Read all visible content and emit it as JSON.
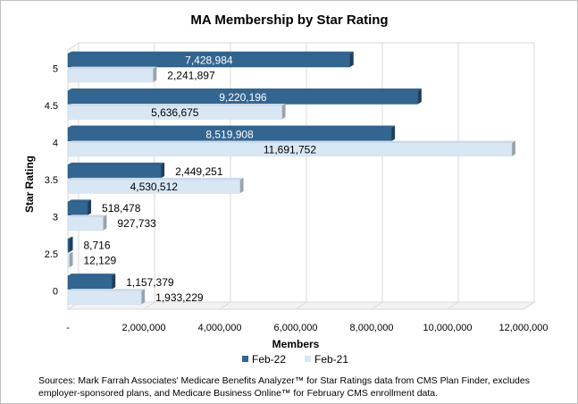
{
  "chart_data": {
    "type": "bar",
    "orientation": "horizontal",
    "title": "MA Membership by Star Rating",
    "xlabel": "Members",
    "ylabel": "Star Rating",
    "categories": [
      "5",
      "4.5",
      "4",
      "3.5",
      "3",
      "2.5",
      "0"
    ],
    "series": [
      {
        "name": "Feb-22",
        "color": "#336591",
        "values": [
          7428984,
          9220196,
          8519908,
          2449251,
          518478,
          8716,
          1157379
        ],
        "labels": [
          "7,428,984",
          "9,220,196",
          "8,519,908",
          "2,449,251",
          "518,478",
          "8,716",
          "1,157,379"
        ]
      },
      {
        "name": "Feb-21",
        "color": "#d9e7f5",
        "values": [
          2241897,
          5636675,
          11691752,
          4530512,
          927733,
          12129,
          1933229
        ],
        "labels": [
          "2,241,897",
          "5,636,675",
          "11,691,752",
          "4,530,512",
          "927,733",
          "12,129",
          "1,933,229"
        ]
      }
    ],
    "xlim": [
      0,
      12000000
    ],
    "xticks": [
      0,
      2000000,
      4000000,
      6000000,
      8000000,
      10000000,
      12000000
    ],
    "xtick_labels": [
      "-",
      "2,000,000",
      "4,000,000",
      "6,000,000",
      "8,000,000",
      "10,000,000",
      "12,000,000"
    ],
    "grid": true,
    "legend_position": "bottom"
  },
  "source_note": "Sources: Mark Farrah Associates' Medicare Benefits Analyzer™ for Star Ratings data from CMS Plan Finder, excludes employer-sponsored plans, and Medicare Business Online™ for February CMS enrollment data."
}
